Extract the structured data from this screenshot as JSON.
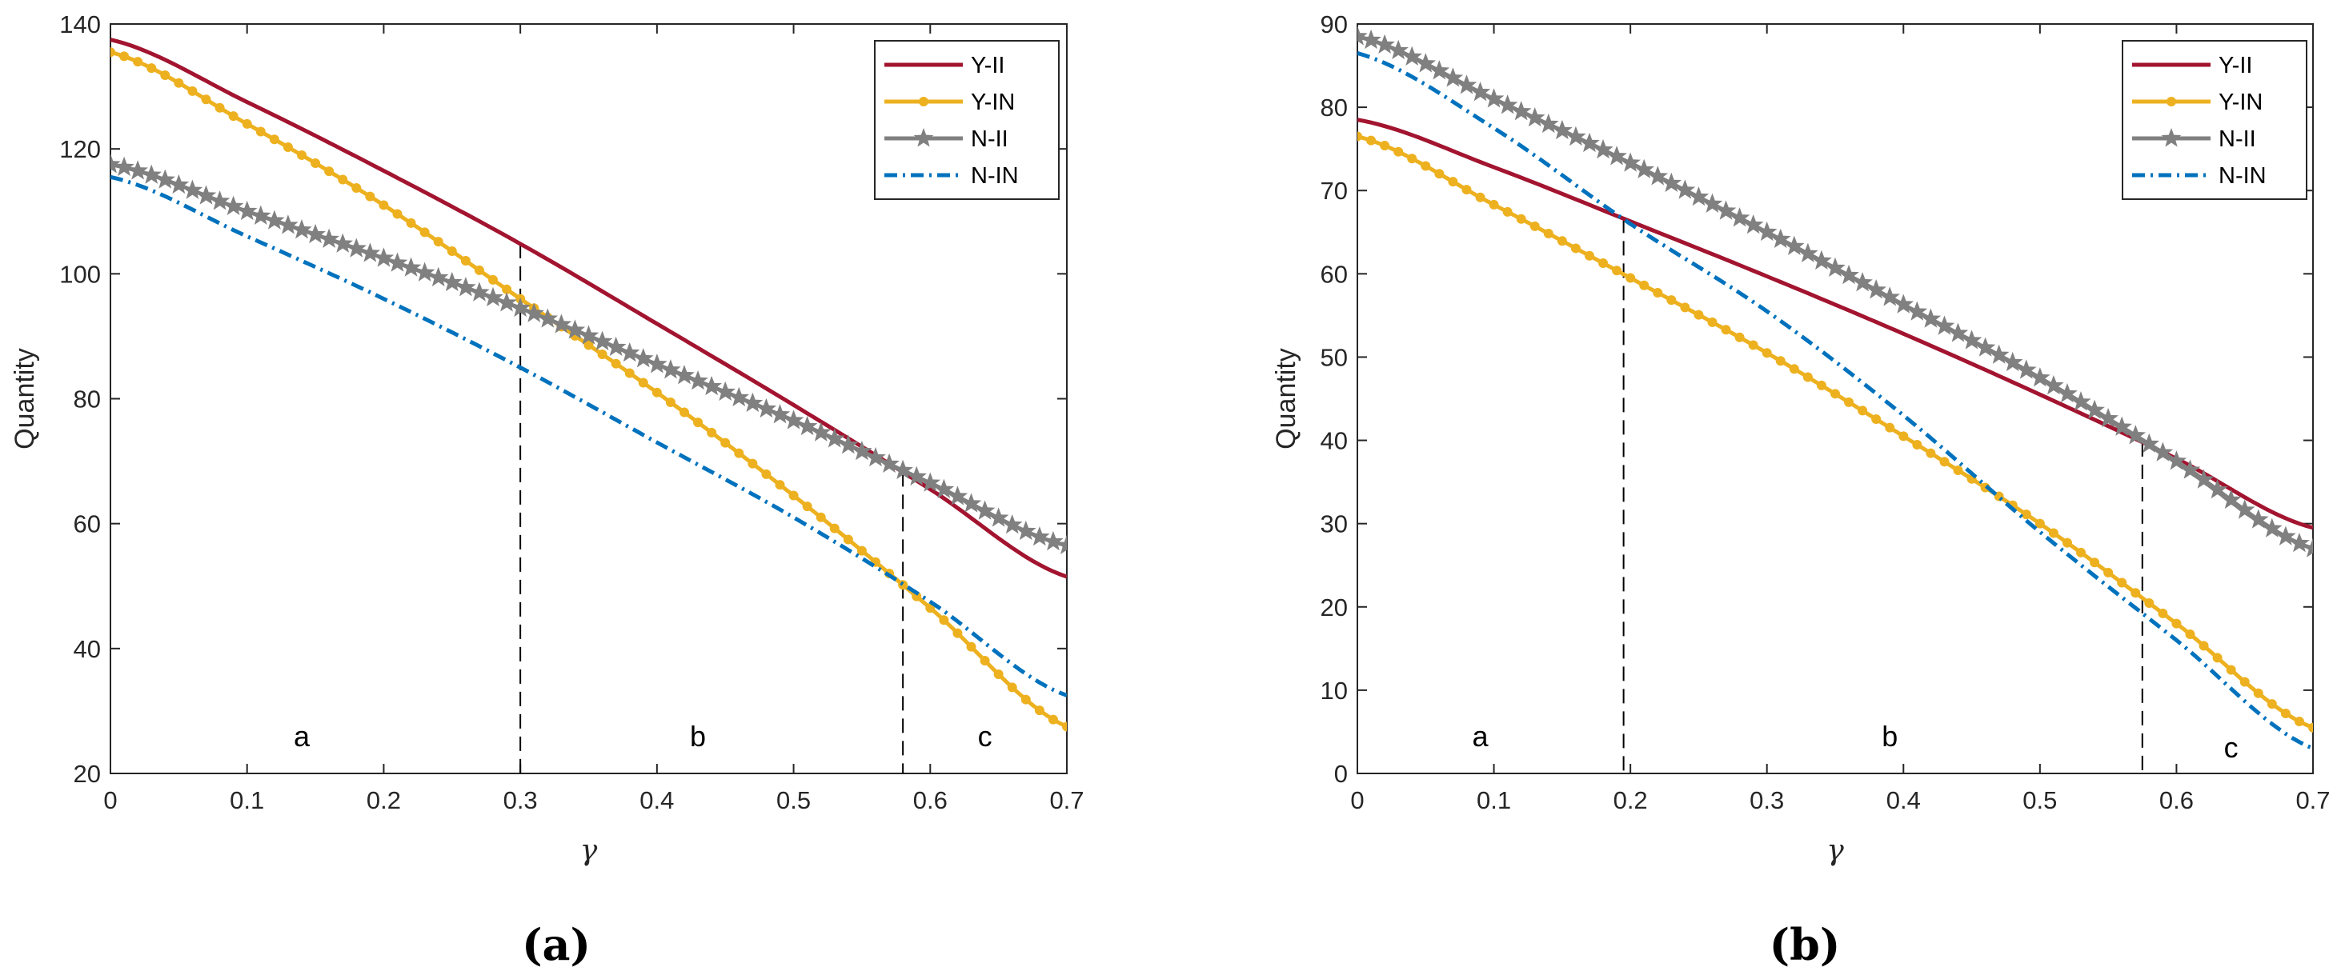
{
  "chart_data": [
    {
      "type": "line",
      "caption": "(a)",
      "xlabel": "γ",
      "ylabel": "Quantity",
      "xlim": [
        0,
        0.7
      ],
      "ylim": [
        20,
        140
      ],
      "xticks": [
        0,
        0.1,
        0.2,
        0.3,
        0.4,
        0.5,
        0.6,
        0.7
      ],
      "xtick_labels": [
        "0",
        "0.1",
        "0.2",
        "0.3",
        "0.4",
        "0.5",
        "0.6",
        "0.7"
      ],
      "yticks": [
        20,
        40,
        60,
        80,
        100,
        120,
        140
      ],
      "ytick_labels": [
        "20",
        "40",
        "60",
        "80",
        "100",
        "120",
        "140"
      ],
      "grid": false,
      "legend_position": "top-right",
      "x": [
        0,
        0.1,
        0.2,
        0.3,
        0.4,
        0.5,
        0.6,
        0.7
      ],
      "series": [
        {
          "name": "Y-II",
          "color": "#A2142F",
          "marker": "none",
          "dash": "solid",
          "values": [
            137.5,
            127.5,
            116.5,
            104.8,
            92.0,
            79.0,
            65.5,
            51.5
          ]
        },
        {
          "name": "Y-IN",
          "color": "#EDB120",
          "marker": "circle",
          "dash": "solid",
          "values": [
            135.5,
            124.0,
            111.0,
            96.0,
            81.0,
            64.5,
            46.5,
            27.5
          ]
        },
        {
          "name": "N-II",
          "color": "#808080",
          "marker": "star",
          "dash": "solid",
          "values": [
            117.5,
            110.0,
            102.5,
            94.5,
            85.5,
            76.5,
            66.5,
            56.5
          ]
        },
        {
          "name": "N-IN",
          "color": "#0072BD",
          "marker": "none",
          "dash": "dashdot",
          "values": [
            115.5,
            106.0,
            96.0,
            85.0,
            73.0,
            61.0,
            47.5,
            32.5
          ]
        }
      ],
      "thresholds": [
        0.3,
        0.58
      ],
      "regions": [
        {
          "label": "a",
          "x": 0.14
        },
        {
          "label": "b",
          "x": 0.43
        },
        {
          "label": "c",
          "x": 0.64
        }
      ]
    },
    {
      "type": "line",
      "caption": "(b)",
      "xlabel": "γ",
      "ylabel": "Quantity",
      "xlim": [
        0,
        0.7
      ],
      "ylim": [
        0,
        90
      ],
      "xticks": [
        0,
        0.1,
        0.2,
        0.3,
        0.4,
        0.5,
        0.6,
        0.7
      ],
      "xtick_labels": [
        "0",
        "0.1",
        "0.2",
        "0.3",
        "0.4",
        "0.5",
        "0.6",
        "0.7"
      ],
      "yticks": [
        0,
        10,
        20,
        30,
        40,
        50,
        60,
        70,
        80,
        90
      ],
      "ytick_labels": [
        "0",
        "10",
        "20",
        "30",
        "40",
        "50",
        "60",
        "70",
        "80",
        "90"
      ],
      "grid": false,
      "legend_position": "top-right",
      "x": [
        0,
        0.1,
        0.2,
        0.3,
        0.4,
        0.5,
        0.6,
        0.7
      ],
      "series": [
        {
          "name": "Y-II",
          "color": "#A2142F",
          "marker": "none",
          "dash": "solid",
          "values": [
            78.5,
            72.8,
            66.3,
            59.7,
            52.8,
            45.5,
            37.8,
            29.5
          ]
        },
        {
          "name": "Y-IN",
          "color": "#EDB120",
          "marker": "circle",
          "dash": "solid",
          "values": [
            76.5,
            68.3,
            59.5,
            50.5,
            40.5,
            30.0,
            18.0,
            5.5
          ]
        },
        {
          "name": "N-II",
          "color": "#808080",
          "marker": "star",
          "dash": "solid",
          "values": [
            88.5,
            81.0,
            73.3,
            65.0,
            56.3,
            47.5,
            37.5,
            27.0
          ]
        },
        {
          "name": "N-IN",
          "color": "#0072BD",
          "marker": "none",
          "dash": "dashdot",
          "values": [
            86.5,
            77.5,
            66.0,
            55.5,
            43.0,
            29.0,
            16.0,
            3.0
          ]
        }
      ],
      "thresholds": [
        0.195,
        0.575
      ],
      "regions": [
        {
          "label": "a",
          "x": 0.09
        },
        {
          "label": "b",
          "x": 0.39
        },
        {
          "label": "c",
          "x": 0.64
        }
      ]
    }
  ]
}
